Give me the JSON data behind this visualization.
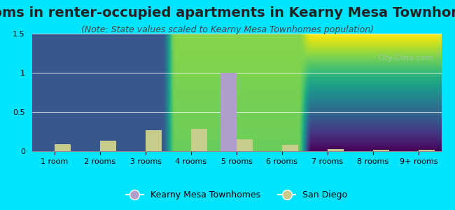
{
  "title": "Rooms in renter-occupied apartments in Kearny Mesa Townhomes",
  "subtitle": "(Note: State values scaled to Kearny Mesa Townhomes population)",
  "categories": [
    "1 room",
    "2 rooms",
    "3 rooms",
    "4 rooms",
    "5 rooms",
    "6 rooms",
    "7 rooms",
    "8 rooms",
    "9+ rooms"
  ],
  "kearny_values": [
    0,
    0,
    0,
    0,
    1.0,
    0,
    0,
    0,
    0
  ],
  "sandiego_values": [
    0.09,
    0.13,
    0.27,
    0.29,
    0.15,
    0.08,
    0.03,
    0.02,
    0.02
  ],
  "kearny_color": "#b09fcc",
  "sandiego_color": "#c8cc8a",
  "background_outer": "#00e5ff",
  "background_plot_top": "#d8f0f8",
  "background_plot_bottom": "#d8eecc",
  "ylim": [
    0,
    1.5
  ],
  "yticks": [
    0,
    0.5,
    1,
    1.5
  ],
  "bar_width": 0.35,
  "title_fontsize": 14,
  "subtitle_fontsize": 9,
  "tick_fontsize": 8,
  "legend_fontsize": 9
}
